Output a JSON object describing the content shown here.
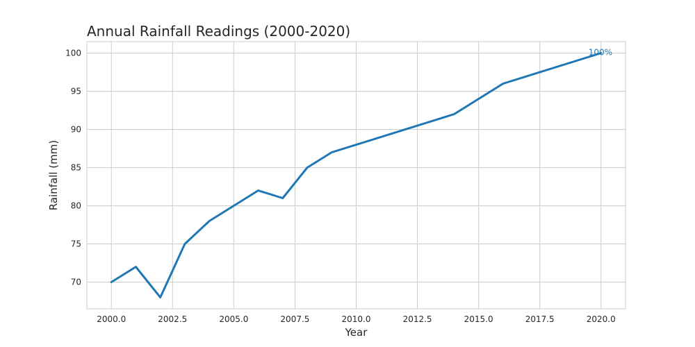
{
  "chart_data": {
    "type": "line",
    "title": "Annual Rainfall Readings (2000-2020)",
    "xlabel": "Year",
    "ylabel": "Rainfall (mm)",
    "xlim": [
      1999.0,
      2021.0
    ],
    "ylim": [
      66.5,
      101.5
    ],
    "x_ticks": [
      2000.0,
      2002.5,
      2005.0,
      2007.5,
      2010.0,
      2012.5,
      2015.0,
      2017.5,
      2020.0
    ],
    "x_tick_labels": [
      "2000.0",
      "2002.5",
      "2005.0",
      "2007.5",
      "2010.0",
      "2012.5",
      "2015.0",
      "2017.5",
      "2020.0"
    ],
    "y_ticks": [
      70,
      75,
      80,
      85,
      90,
      95,
      100
    ],
    "y_tick_labels": [
      "70",
      "75",
      "80",
      "85",
      "90",
      "95",
      "100"
    ],
    "grid": true,
    "legend": "none",
    "series": [
      {
        "color": "#1f77b4",
        "x": [
          2000,
          2001,
          2002,
          2003,
          2004,
          2005,
          2006,
          2007,
          2008,
          2009,
          2014,
          2016,
          2020
        ],
        "y": [
          70,
          72,
          68,
          75,
          78,
          80,
          82,
          81,
          85,
          87,
          92,
          96,
          100
        ]
      }
    ],
    "annotations": [
      {
        "text": "100%",
        "x": 2020,
        "y": 100,
        "color": "#1f77b4"
      }
    ]
  }
}
